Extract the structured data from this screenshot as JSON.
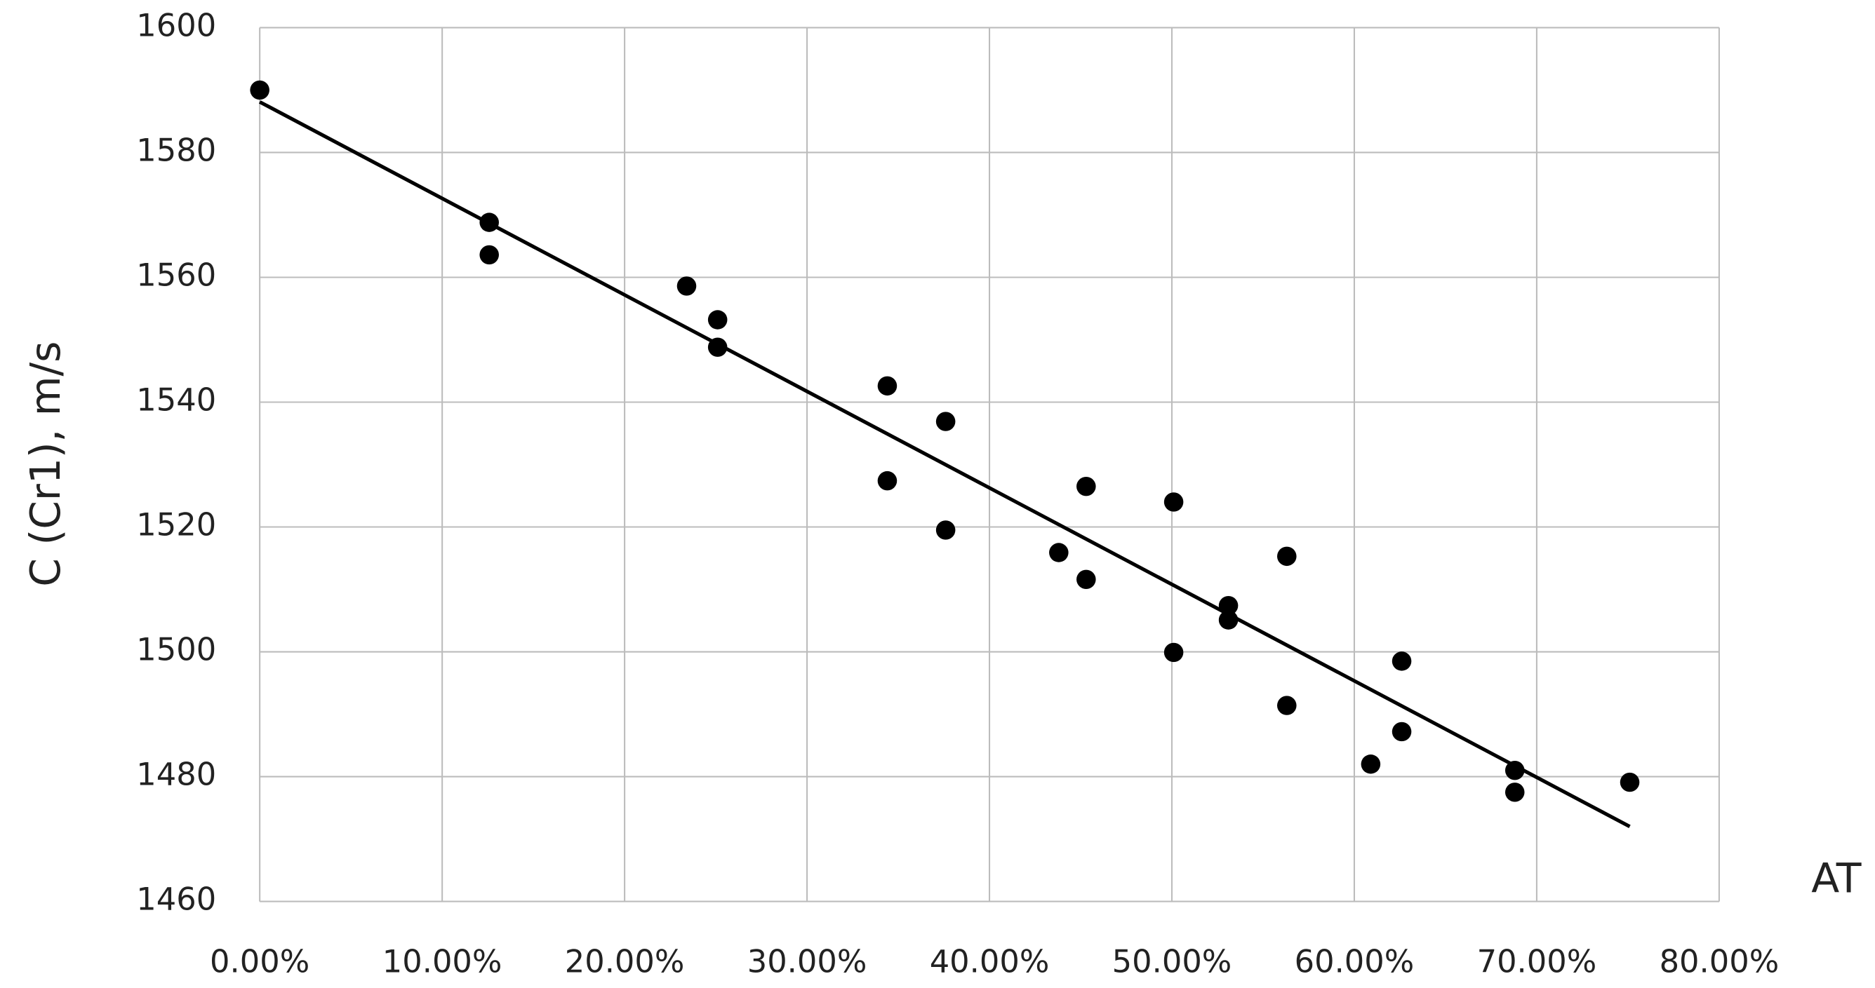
{
  "chart_data": {
    "type": "scatter",
    "x_label": "AT",
    "y_label": "C (Cr1), m/s",
    "x": [
      0,
      12.58,
      12.58,
      23.4,
      25.1,
      25.1,
      34.4,
      34.4,
      37.6,
      37.6,
      43.8,
      45.3,
      45.3,
      50.1,
      50.1,
      53.1,
      53.1,
      56.3,
      56.3,
      60.9,
      62.6,
      62.6,
      68.8,
      68.8,
      75.1
    ],
    "values": [
      1590,
      1568.8,
      1563.6,
      1558.6,
      1553.2,
      1548.8,
      1542.6,
      1527.4,
      1536.9,
      1519.5,
      1515.9,
      1526.5,
      1511.6,
      1524,
      1499.9,
      1507.4,
      1505.1,
      1515.3,
      1491.4,
      1482,
      1498.5,
      1487.2,
      1481,
      1477.5,
      1479.1
    ],
    "color": "#000000",
    "trendline": {
      "x": [
        0,
        75.1
      ],
      "y": [
        1588.1,
        1472
      ],
      "color": "#000000"
    },
    "xlim": [
      0,
      80
    ],
    "xticks": [
      {
        "value": 0,
        "label": "0.00%"
      },
      {
        "value": 10,
        "label": "10.00%"
      },
      {
        "value": 20,
        "label": "20.00%"
      },
      {
        "value": 30,
        "label": "30.00%"
      },
      {
        "value": 40,
        "label": "40.00%"
      },
      {
        "value": 50,
        "label": "50.00%"
      },
      {
        "value": 60,
        "label": "60.00%"
      },
      {
        "value": 70,
        "label": "70.00%"
      },
      {
        "value": 80,
        "label": "80.00%"
      }
    ],
    "ylim": [
      1460,
      1600
    ],
    "yticks": [
      1460,
      1480,
      1500,
      1520,
      1540,
      1560,
      1580,
      1600
    ],
    "grid": true
  }
}
